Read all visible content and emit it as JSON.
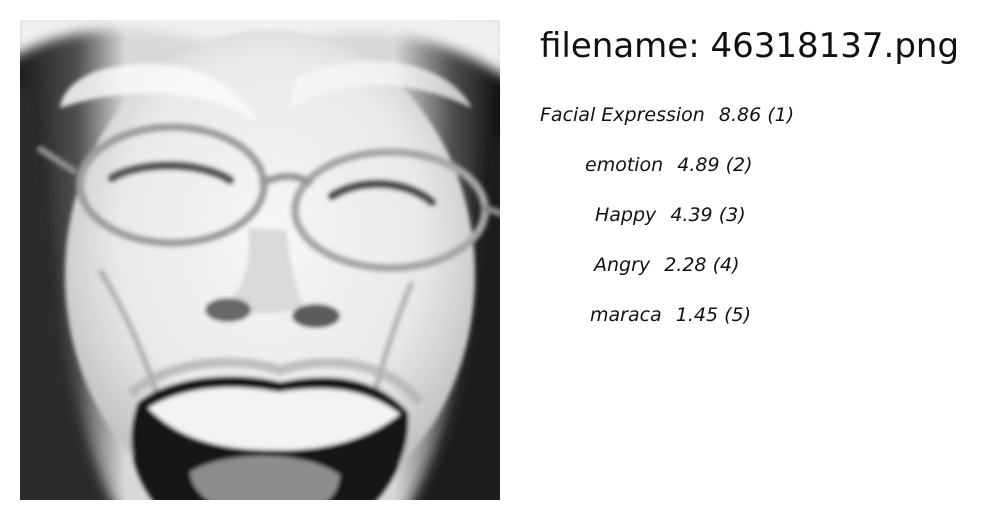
{
  "image": {
    "subject": "grayscale close-up face"
  },
  "filename_text": "filename: 46318137.png",
  "labels": [
    {
      "name": "Facial Expression",
      "score": "8.86",
      "rank": "(1)"
    },
    {
      "name": "emotion",
      "score": "4.89",
      "rank": "(2)"
    },
    {
      "name": "Happy",
      "score": "4.39",
      "rank": "(3)"
    },
    {
      "name": "Angry",
      "score": "2.28",
      "rank": "(4)"
    },
    {
      "name": "maraca",
      "score": "1.45",
      "rank": "(5)"
    }
  ],
  "colors": {
    "text": "#111111",
    "background": "#ffffff"
  }
}
